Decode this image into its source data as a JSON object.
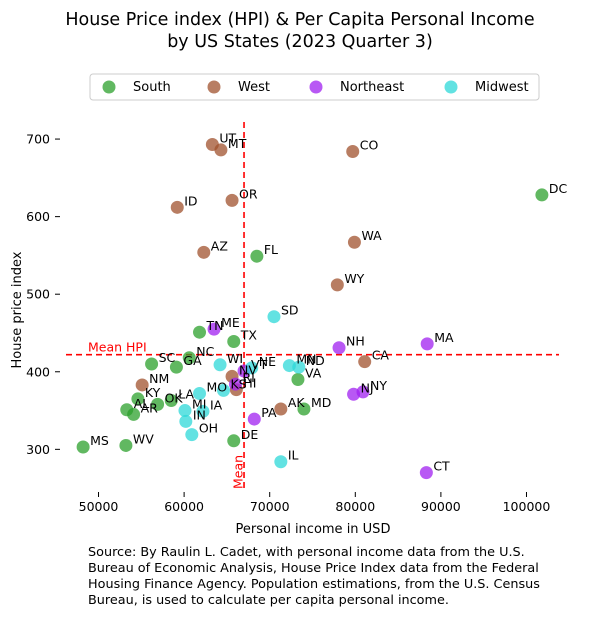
{
  "chart_data": {
    "type": "scatter",
    "title_lines": [
      "House Price index (HPI) & Per Capita Personal Income",
      "by US States (2023 Quarter 3)"
    ],
    "xlabel": "Personal income in USD",
    "ylabel": "House price index",
    "xlim": [
      45500,
      104500
    ],
    "ylim": [
      245,
      722
    ],
    "xticks": [
      50000,
      60000,
      70000,
      80000,
      90000,
      100000
    ],
    "yticks": [
      300,
      400,
      500,
      600,
      700
    ],
    "grid": false,
    "legend_placement": "top-center",
    "mean_hpi": 422,
    "mean_income": 67000,
    "mean_hpi_label": "Mean HPI",
    "mean_income_label": "Mean",
    "reference_line_color": "#ff0000",
    "series": [
      {
        "name": "South",
        "color": "#2ca02c",
        "points": [
          {
            "label": "DC",
            "x": 101800,
            "y": 628
          },
          {
            "label": "FL",
            "x": 68500,
            "y": 549
          },
          {
            "label": "TN",
            "x": 61800,
            "y": 451
          },
          {
            "label": "TX",
            "x": 65800,
            "y": 439
          },
          {
            "label": "SC",
            "x": 56200,
            "y": 410
          },
          {
            "label": "GA",
            "x": 59100,
            "y": 406
          },
          {
            "label": "NC",
            "x": 60600,
            "y": 418
          },
          {
            "label": "VA",
            "x": 73300,
            "y": 390
          },
          {
            "label": "MD",
            "x": 74000,
            "y": 352
          },
          {
            "label": "KY",
            "x": 54600,
            "y": 365
          },
          {
            "label": "LA",
            "x": 58500,
            "y": 363
          },
          {
            "label": "OK",
            "x": 56900,
            "y": 358
          },
          {
            "label": "AL",
            "x": 53300,
            "y": 351
          },
          {
            "label": "AR",
            "x": 54100,
            "y": 345
          },
          {
            "label": "MS",
            "x": 48200,
            "y": 303
          },
          {
            "label": "WV",
            "x": 53200,
            "y": 305
          },
          {
            "label": "DE",
            "x": 65800,
            "y": 311
          }
        ]
      },
      {
        "name": "West",
        "color": "#a0522d",
        "points": [
          {
            "label": "UT",
            "x": 63300,
            "y": 693
          },
          {
            "label": "MT",
            "x": 64300,
            "y": 686
          },
          {
            "label": "CO",
            "x": 79700,
            "y": 684
          },
          {
            "label": "ID",
            "x": 59200,
            "y": 612
          },
          {
            "label": "OR",
            "x": 65600,
            "y": 621
          },
          {
            "label": "WA",
            "x": 79900,
            "y": 567
          },
          {
            "label": "AZ",
            "x": 62300,
            "y": 554
          },
          {
            "label": "WY",
            "x": 77900,
            "y": 512
          },
          {
            "label": "CA",
            "x": 81100,
            "y": 413
          },
          {
            "label": "NM",
            "x": 55100,
            "y": 383
          },
          {
            "label": "NV",
            "x": 65600,
            "y": 394
          },
          {
            "label": "HI",
            "x": 66100,
            "y": 377
          },
          {
            "label": "AK",
            "x": 71300,
            "y": 352
          }
        ]
      },
      {
        "name": "Northeast",
        "color": "#a020f0",
        "points": [
          {
            "label": "ME",
            "x": 63500,
            "y": 455
          },
          {
            "label": "MA",
            "x": 88400,
            "y": 436
          },
          {
            "label": "NH",
            "x": 78100,
            "y": 431
          },
          {
            "label": "VT",
            "x": 67000,
            "y": 401
          },
          {
            "label": "NY",
            "x": 80900,
            "y": 374
          },
          {
            "label": "NJ",
            "x": 79800,
            "y": 371
          },
          {
            "label": "PA",
            "x": 68200,
            "y": 339
          },
          {
            "label": "RI",
            "x": 66000,
            "y": 384
          },
          {
            "label": "CT",
            "x": 88300,
            "y": 270
          }
        ]
      },
      {
        "name": "Midwest",
        "color": "#2ed8d8",
        "points": [
          {
            "label": "SD",
            "x": 70500,
            "y": 471
          },
          {
            "label": "WI",
            "x": 64200,
            "y": 409
          },
          {
            "label": "NE",
            "x": 67900,
            "y": 405
          },
          {
            "label": "MN",
            "x": 72300,
            "y": 408
          },
          {
            "label": "ND",
            "x": 73400,
            "y": 406
          },
          {
            "label": "MO",
            "x": 61800,
            "y": 372
          },
          {
            "label": "KS",
            "x": 64600,
            "y": 376
          },
          {
            "label": "MI",
            "x": 60100,
            "y": 350
          },
          {
            "label": "IA",
            "x": 62200,
            "y": 349
          },
          {
            "label": "IN",
            "x": 60200,
            "y": 336
          },
          {
            "label": "OH",
            "x": 60900,
            "y": 319
          },
          {
            "label": "IL",
            "x": 71300,
            "y": 284
          }
        ]
      }
    ]
  },
  "source_text": "Source: By Raulin L. Cadet, with personal income data from the U.S.\n Bureau of Economic Analysis, House Price Index data from the Federal\n Housing Finance Agency. Population estimations, from the U.S. Census\n Bureau, is used to calculate per capita personal income."
}
